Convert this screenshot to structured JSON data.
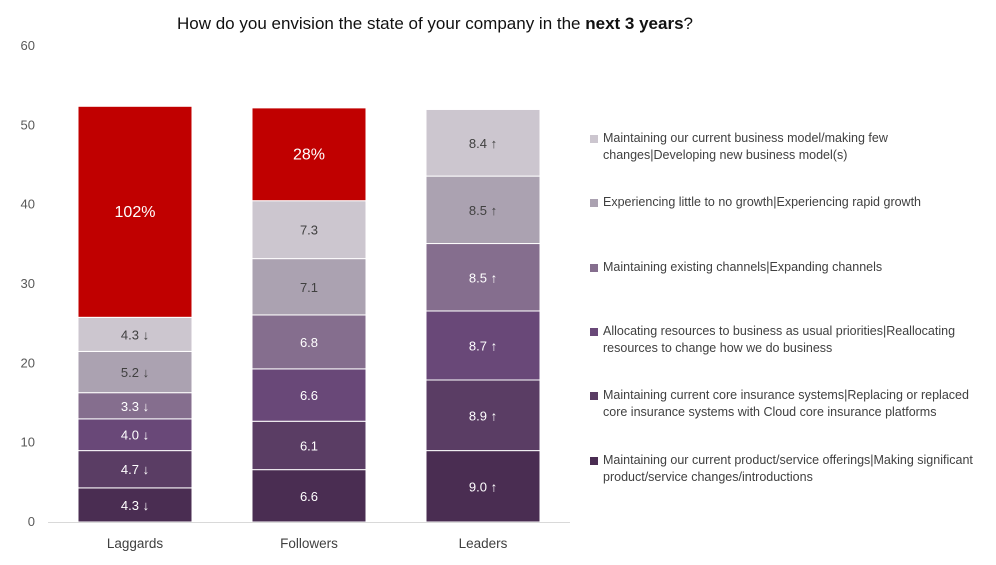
{
  "chart_data": {
    "type": "bar",
    "stacked": true,
    "title": {
      "prefix": "How do you envision the state of your company in the ",
      "bold": "next 3 years",
      "suffix": "?"
    },
    "categories": [
      "Laggards",
      "Followers",
      "Leaders"
    ],
    "ylim": [
      0,
      60
    ],
    "yticks": [
      0,
      10,
      20,
      30,
      40,
      50,
      60
    ],
    "grid": false,
    "legend_position": "right",
    "series": [
      {
        "name": "Maintaining our current product/service offerings|Making significant product/service changes/introductions",
        "color": "#4a2d52",
        "values": [
          4.3,
          6.6,
          9.0
        ],
        "labels": [
          "4.3 ↓",
          "6.6",
          "9.0 ↑"
        ]
      },
      {
        "name": "Maintaining current core insurance systems|Replacing or replaced core insurance systems with Cloud core insurance platforms",
        "color": "#5a3d64",
        "values": [
          4.7,
          6.1,
          8.9
        ],
        "labels": [
          "4.7 ↓",
          "6.1",
          "8.9 ↑"
        ]
      },
      {
        "name": "Allocating resources to business as usual priorities|Reallocating resources to change how we do business",
        "color": "#694878",
        "values": [
          4.0,
          6.6,
          8.7
        ],
        "labels": [
          "4.0 ↓",
          "6.6",
          "8.7 ↑"
        ]
      },
      {
        "name": "Maintaining existing channels|Expanding channels",
        "color": "#856e8e",
        "values": [
          3.3,
          6.8,
          8.5
        ],
        "labels": [
          "3.3 ↓",
          "6.8",
          "8.5 ↑"
        ]
      },
      {
        "name": "Experiencing little to no growth|Experiencing rapid growth",
        "color": "#aba2b1",
        "values": [
          5.2,
          7.1,
          8.5
        ],
        "labels": [
          "5.2 ↓",
          "7.1",
          "8.5 ↑"
        ]
      },
      {
        "name": "Maintaining our current business model/making few changes|Developing new business model(s)",
        "color": "#ccc6cf",
        "values": [
          4.3,
          7.3,
          8.4
        ],
        "labels": [
          "4.3 ↓",
          "7.3",
          "8.4 ↑"
        ]
      },
      {
        "color": "#c00000",
        "values": [
          26.6,
          11.7,
          0
        ],
        "labels": [
          "102%",
          "28%",
          ""
        ]
      }
    ]
  }
}
